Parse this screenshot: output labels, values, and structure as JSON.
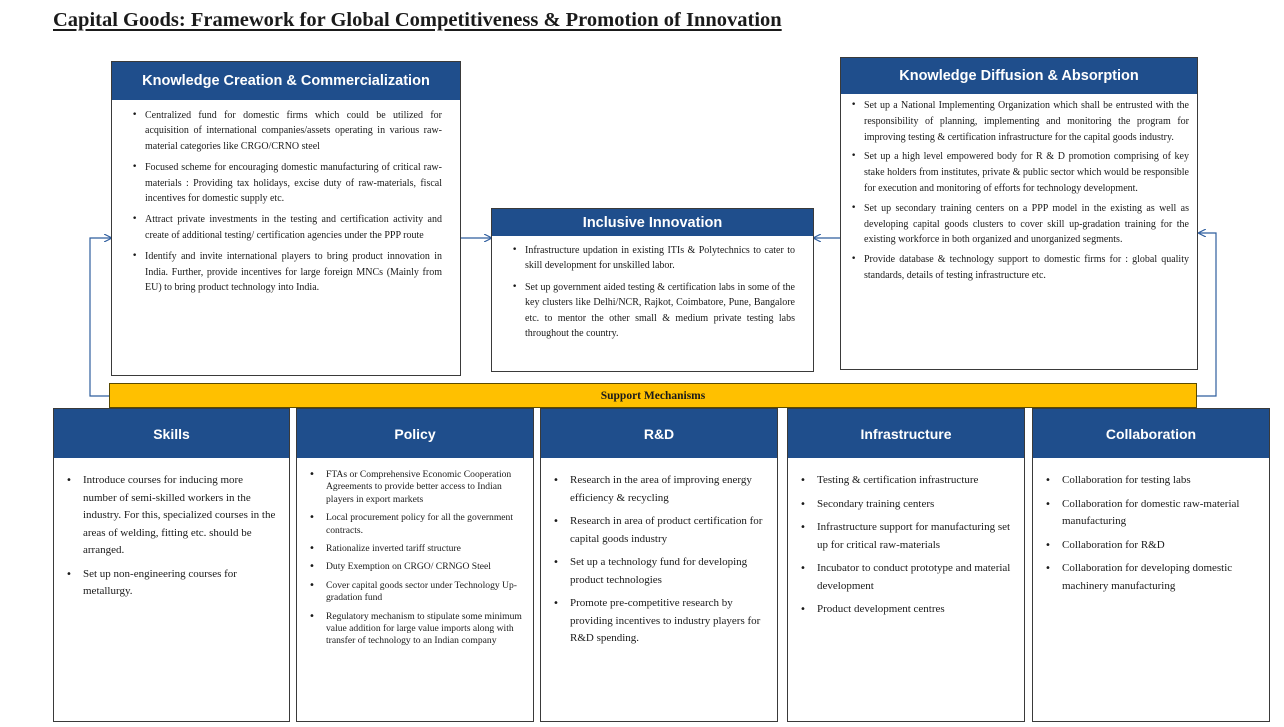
{
  "title": "Capital Goods: Framework for Global Competitiveness & Promotion of Innovation",
  "colors": {
    "header_blue": "#1f4e8c",
    "support_yellow": "#ffc000",
    "arrow_blue": "#2e5d9e"
  },
  "knowledge_creation": {
    "title": "Knowledge Creation & Commercialization",
    "items": [
      "Centralized fund for domestic firms which could be utilized for acquisition of international companies/assets operating in various raw-material categories like CRGO/CRNO steel",
      "Focused scheme for encouraging domestic manufacturing of critical raw-materials : Providing tax holidays, excise duty of raw-materials, fiscal incentives for domestic supply etc.",
      "Attract private investments in the testing and certification activity and create of additional testing/ certification agencies under the PPP route",
      "Identify and invite international players to bring product innovation in India. Further, provide incentives for large foreign MNCs (Mainly from EU) to bring product technology into India."
    ]
  },
  "inclusive_innovation": {
    "title": "Inclusive Innovation",
    "items": [
      "Infrastructure updation in existing ITIs & Polytechnics to cater to skill development for unskilled labor.",
      "Set up government aided testing & certification labs in some of the key clusters like Delhi/NCR, Rajkot, Coimbatore, Pune, Bangalore etc. to mentor the other small & medium private testing labs throughout the country."
    ]
  },
  "knowledge_diffusion": {
    "title": "Knowledge Diffusion & Absorption",
    "items": [
      "Set up a National Implementing Organization which shall be entrusted with the responsibility of planning, implementing and monitoring the program for improving testing & certification infrastructure for the capital goods industry.",
      "Set up a high level empowered body for R & D promotion comprising of key stake holders from institutes, private & public sector which would be responsible for execution and monitoring of efforts for technology development.",
      "Set up secondary training centers on a PPP model in the existing as well as developing capital goods clusters to cover skill up-gradation training for the existing workforce in both organized and unorganized segments.",
      "Provide database & technology support to domestic firms for : global quality standards, details of testing infrastructure etc."
    ]
  },
  "support_mechanisms": "Support Mechanisms",
  "skills": {
    "title": "Skills",
    "items": [
      "Introduce courses for inducing more number of semi-skilled workers in the industry. For this, specialized courses in the areas of welding, fitting etc. should be arranged.",
      "Set up non-engineering courses for metallurgy."
    ]
  },
  "policy": {
    "title": "Policy",
    "items": [
      "FTAs or Comprehensive Economic Cooperation Agreements to provide better access to Indian players in export markets",
      "Local procurement policy for all the government contracts.",
      "Rationalize inverted tariff structure",
      "Duty Exemption on CRGO/ CRNGO Steel",
      "Cover capital goods sector under Technology Up-gradation fund",
      "Regulatory mechanism to stipulate some minimum value addition for large value imports along with transfer of technology to an Indian company"
    ]
  },
  "rnd": {
    "title": "R&D",
    "items": [
      "Research in the area of improving energy efficiency & recycling",
      "Research in area of product certification for capital goods industry",
      "Set up a technology fund for developing product technologies",
      "Promote pre-competitive research by providing incentives to industry players for R&D spending."
    ]
  },
  "infrastructure": {
    "title": "Infrastructure",
    "items": [
      "Testing & certification infrastructure",
      "Secondary training centers",
      "Infrastructure support for manufacturing set up for critical raw-materials",
      "Incubator to conduct prototype and material development",
      "Product development centres"
    ]
  },
  "collaboration": {
    "title": "Collaboration",
    "items": [
      "Collaboration for testing labs",
      "Collaboration for domestic raw-material manufacturing",
      "Collaboration for R&D",
      "Collaboration for developing domestic machinery manufacturing"
    ]
  }
}
